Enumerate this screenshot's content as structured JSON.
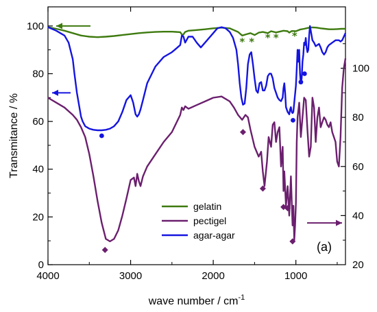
{
  "chart_data": {
    "type": "line",
    "panel_label": "(a)",
    "xlabel": "wave number / cm",
    "xlabel_exp": "-1",
    "ylabel": "Transmitance / %",
    "xlim": [
      4000,
      400
    ],
    "ylim_left": [
      0,
      108
    ],
    "ylim_right": [
      20,
      125
    ],
    "x_ticks": [
      4000,
      3000,
      2000,
      1000
    ],
    "y_left_ticks": [
      0,
      20,
      40,
      60,
      80,
      100
    ],
    "y_right_ticks": [
      40,
      60,
      80,
      100
    ],
    "grid": false,
    "legend_position": "center",
    "colors": {
      "gelatin": "#3d7a0e",
      "pectigel": "#6b1f6e",
      "agar": "#1414e0"
    },
    "arrows": [
      {
        "series": "gelatin",
        "axis": "left",
        "direction": "left",
        "y": 100
      },
      {
        "series": "agar-agar",
        "axis": "left",
        "direction": "left",
        "y": 72
      },
      {
        "series": "pectigel",
        "axis": "right",
        "direction": "right",
        "y": 37
      }
    ],
    "series": [
      {
        "name": "gelatin",
        "axis": "left",
        "x": [
          4000,
          3900,
          3800,
          3700,
          3600,
          3500,
          3400,
          3300,
          3200,
          3100,
          3000,
          2900,
          2800,
          2700,
          2600,
          2500,
          2400,
          2370,
          2340,
          2300,
          2200,
          2100,
          2000,
          1900,
          1800,
          1700,
          1650,
          1600,
          1550,
          1500,
          1450,
          1400,
          1340,
          1300,
          1240,
          1200,
          1150,
          1100,
          1080,
          1050,
          1000,
          950,
          900,
          850,
          800,
          750,
          700,
          650,
          600,
          550,
          500,
          450,
          400
        ],
        "y": [
          99.5,
          98.8,
          98.0,
          97.0,
          96.0,
          95.5,
          95.3,
          95.5,
          95.8,
          96.2,
          96.6,
          97.0,
          97.3,
          97.5,
          97.6,
          97.6,
          97.4,
          96.0,
          97.5,
          98.0,
          98.3,
          98.6,
          99.0,
          99.3,
          99.0,
          97.5,
          96.0,
          96.5,
          97.0,
          96.2,
          97.2,
          97.5,
          97.0,
          97.8,
          97.3,
          97.6,
          98.0,
          97.8,
          97.2,
          97.9,
          97.8,
          98.5,
          98.8,
          99.2,
          99.4,
          99.3,
          99.0,
          98.8,
          98.6,
          98.6,
          98.7,
          98.8,
          98.8
        ]
      },
      {
        "name": "pectigel",
        "axis": "right",
        "x": [
          4000,
          3900,
          3800,
          3700,
          3650,
          3600,
          3550,
          3500,
          3450,
          3400,
          3350,
          3300,
          3250,
          3200,
          3150,
          3100,
          3050,
          3000,
          2960,
          2940,
          2920,
          2900,
          2880,
          2850,
          2800,
          2700,
          2600,
          2500,
          2400,
          2380,
          2360,
          2340,
          2300,
          2200,
          2100,
          2000,
          1900,
          1800,
          1750,
          1700,
          1650,
          1610,
          1580,
          1550,
          1500,
          1450,
          1420,
          1400,
          1380,
          1350,
          1330,
          1300,
          1280,
          1260,
          1240,
          1220,
          1200,
          1180,
          1160,
          1150,
          1140,
          1120,
          1100,
          1080,
          1060,
          1040,
          1030,
          1020,
          1010,
          1000,
          990,
          980,
          960,
          940,
          920,
          900,
          880,
          860,
          840,
          820,
          800,
          780,
          760,
          740,
          720,
          700,
          680,
          660,
          640,
          620,
          600,
          580,
          560,
          540,
          520,
          500,
          480,
          460,
          440,
          420,
          400
        ],
        "y": [
          88.0,
          86.0,
          84.0,
          81.0,
          79.0,
          76.0,
          72.0,
          65.0,
          56.0,
          46.0,
          37.0,
          30.5,
          29.5,
          30.5,
          34.0,
          40.0,
          47.0,
          54.5,
          55.5,
          52.0,
          57.0,
          54.0,
          52.0,
          56.0,
          60.0,
          65.0,
          70.0,
          74.0,
          81.0,
          84.0,
          83.0,
          84.5,
          83.5,
          85.0,
          86.5,
          88.0,
          88.5,
          86.5,
          84.0,
          81.0,
          79.0,
          81.0,
          80.0,
          75.0,
          68.0,
          64.0,
          66.0,
          58.0,
          52.0,
          62.0,
          72.0,
          68.0,
          77.0,
          78.0,
          70.0,
          74.0,
          76.0,
          60.0,
          68.0,
          50.0,
          58.0,
          44.0,
          52.0,
          40.0,
          56.0,
          36.0,
          44.0,
          30.0,
          36.0,
          45.0,
          70.0,
          80.0,
          86.0,
          72.0,
          80.0,
          88.0,
          87.0,
          75.0,
          64.0,
          68.0,
          88.0,
          84.0,
          70.0,
          80.0,
          84.0,
          76.0,
          78.0,
          80.0,
          79.0,
          77.0,
          76.0,
          78.0,
          74.0,
          72.0,
          70.0,
          62.0,
          60.0,
          72.0,
          92.0,
          100.0,
          104.0
        ]
      },
      {
        "name": "agar-agar",
        "axis": "left",
        "x": [
          4000,
          3900,
          3800,
          3750,
          3700,
          3680,
          3650,
          3620,
          3600,
          3580,
          3550,
          3500,
          3450,
          3400,
          3350,
          3300,
          3250,
          3200,
          3150,
          3100,
          3050,
          3000,
          2970,
          2940,
          2920,
          2900,
          2880,
          2850,
          2800,
          2700,
          2600,
          2500,
          2450,
          2400,
          2380,
          2360,
          2340,
          2300,
          2250,
          2200,
          2150,
          2100,
          2000,
          1950,
          1900,
          1850,
          1800,
          1760,
          1720,
          1700,
          1680,
          1660,
          1640,
          1620,
          1600,
          1580,
          1560,
          1540,
          1520,
          1500,
          1480,
          1460,
          1440,
          1420,
          1400,
          1380,
          1360,
          1340,
          1320,
          1300,
          1280,
          1260,
          1240,
          1220,
          1200,
          1180,
          1160,
          1150,
          1140,
          1130,
          1120,
          1100,
          1080,
          1070,
          1060,
          1050,
          1040,
          1030,
          1020,
          1000,
          990,
          980,
          970,
          960,
          950,
          940,
          930,
          920,
          910,
          900,
          890,
          880,
          870,
          860,
          850,
          840,
          830,
          820,
          810,
          800,
          780,
          760,
          740,
          720,
          700,
          680,
          660,
          640,
          620,
          600,
          580,
          560,
          540,
          520,
          500,
          480,
          460,
          440,
          420,
          400
        ],
        "y": [
          99.5,
          98.0,
          96.0,
          93.0,
          86.0,
          80.0,
          72.0,
          66.0,
          62.0,
          60.0,
          58.0,
          57.0,
          56.5,
          56.3,
          56.3,
          56.5,
          57.0,
          58.0,
          60.0,
          64.0,
          69.0,
          71.0,
          68.0,
          63.0,
          62.0,
          63.0,
          65.0,
          69.0,
          76.0,
          83.0,
          87.0,
          89.0,
          90.5,
          92.0,
          96.0,
          95.5,
          93.0,
          95.5,
          95.5,
          93.0,
          91.0,
          93.0,
          97.0,
          99.0,
          99.5,
          99.0,
          97.5,
          95.0,
          90.0,
          84.0,
          76.0,
          70.0,
          67.0,
          67.5,
          74.0,
          84.0,
          88.0,
          89.0,
          84.0,
          78.0,
          73.0,
          72.0,
          76.0,
          76.5,
          73.0,
          73.0,
          75.0,
          79.0,
          80.0,
          80.0,
          78.0,
          74.0,
          72.0,
          70.0,
          69.0,
          68.5,
          70.0,
          74.0,
          76.0,
          72.0,
          66.0,
          64.0,
          63.0,
          65.0,
          66.0,
          64.0,
          63.5,
          64.0,
          68.0,
          75.0,
          82.0,
          90.0,
          85.0,
          90.0,
          80.0,
          76.0,
          78.0,
          85.0,
          88.0,
          93.0,
          92.0,
          95.0,
          91.0,
          89.0,
          90.0,
          96.0,
          100.0,
          98.0,
          96.0,
          94.0,
          93.0,
          91.5,
          92.0,
          92.5,
          91.0,
          89.0,
          88.0,
          89.0,
          91.0,
          92.0,
          92.5,
          93.0,
          93.5,
          94.0,
          94.0,
          94.0,
          93.5,
          94.0,
          95.5,
          97.0
        ]
      }
    ],
    "markers": {
      "gelatin_asterisks": [
        {
          "x": 1650,
          "y": 94.5
        },
        {
          "x": 1535,
          "y": 94.5
        },
        {
          "x": 1340,
          "y": 96.2
        },
        {
          "x": 1240,
          "y": 96.2
        },
        {
          "x": 1015,
          "y": 97.0
        }
      ],
      "agar_circles": [
        {
          "x": 3350,
          "y": 54.0
        },
        {
          "x": 1035,
          "y": 60.5
        },
        {
          "x": 940,
          "y": 76.5
        },
        {
          "x": 895,
          "y": 80.0
        }
      ],
      "pectigel_diamonds": [
        {
          "x": 3310,
          "y": 26.0
        },
        {
          "x": 1640,
          "y": 74.0
        },
        {
          "x": 1400,
          "y": 51.0
        },
        {
          "x": 1150,
          "y": 43.5
        },
        {
          "x": 1100,
          "y": 43.0
        },
        {
          "x": 1040,
          "y": 29.5
        }
      ]
    }
  }
}
